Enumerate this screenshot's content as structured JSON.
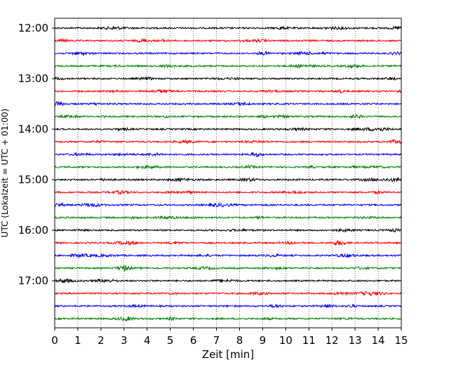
{
  "chart_data": {
    "type": "line",
    "title": "",
    "xlabel": "Zeit  [min]",
    "ylabel": "UTC (Lokalzeit = UTC + 01:00)",
    "xlim": [
      0,
      15
    ],
    "x_ticks": [
      "0",
      "1",
      "2",
      "3",
      "4",
      "5",
      "6",
      "7",
      "8",
      "9",
      "10",
      "11",
      "12",
      "13",
      "14",
      "15"
    ],
    "y_tick_labels": [
      "12:00",
      "13:00",
      "14:00",
      "15:00",
      "16:00",
      "17:00"
    ],
    "grid": "vertical dotted",
    "trace_start": "12:00",
    "trace_interval_min": 15,
    "trace_count": 24,
    "trace_colors": [
      "#000000",
      "#ff0000",
      "#0000ff",
      "#008000"
    ]
  }
}
